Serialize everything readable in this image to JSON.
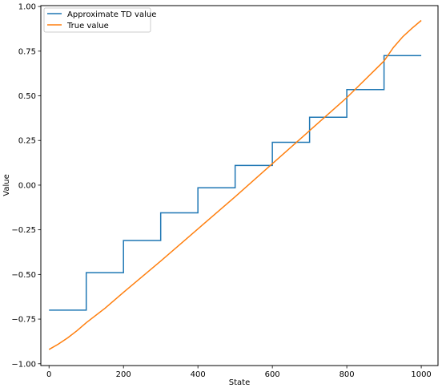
{
  "chart_data": {
    "type": "line",
    "title": "",
    "xlabel": "State",
    "ylabel": "Value",
    "xlim": [
      -22,
      1045
    ],
    "ylim": [
      -1.01,
      1.005
    ],
    "xticks": [
      0,
      200,
      400,
      600,
      800,
      1000
    ],
    "xtick_labels": [
      "0",
      "200",
      "400",
      "600",
      "800",
      "1000"
    ],
    "yticks": [
      1.0,
      0.75,
      0.5,
      0.25,
      0.0,
      -0.25,
      -0.5,
      -0.75,
      -1.0
    ],
    "ytick_labels": [
      "1.00",
      "0.75",
      "0.50",
      "0.25",
      "0.00",
      "−0.25",
      "−0.50",
      "−0.75",
      "−1.00"
    ],
    "grid": false,
    "legend_position": "top-left",
    "series": [
      {
        "name": "Approximate TD value",
        "color": "#1f77b4",
        "step": true,
        "segments": [
          {
            "x_start": 0,
            "x_end": 100,
            "y": -0.7
          },
          {
            "x_start": 100,
            "x_end": 200,
            "y": -0.49
          },
          {
            "x_start": 200,
            "x_end": 300,
            "y": -0.31
          },
          {
            "x_start": 300,
            "x_end": 400,
            "y": -0.155
          },
          {
            "x_start": 400,
            "x_end": 500,
            "y": -0.015
          },
          {
            "x_start": 500,
            "x_end": 600,
            "y": 0.11
          },
          {
            "x_start": 600,
            "x_end": 700,
            "y": 0.24
          },
          {
            "x_start": 700,
            "x_end": 800,
            "y": 0.38
          },
          {
            "x_start": 800,
            "x_end": 900,
            "y": 0.535
          },
          {
            "x_start": 900,
            "x_end": 1000,
            "y": 0.725
          }
        ]
      },
      {
        "name": "True value",
        "color": "#ff7f0e",
        "step": false,
        "x": [
          0,
          25,
          50,
          75,
          100,
          150,
          200,
          300,
          400,
          500,
          600,
          700,
          800,
          900,
          925,
          950,
          975,
          1000
        ],
        "y": [
          -0.92,
          -0.89,
          -0.855,
          -0.815,
          -0.77,
          -0.69,
          -0.6,
          -0.425,
          -0.245,
          -0.065,
          0.12,
          0.305,
          0.49,
          0.695,
          0.77,
          0.83,
          0.878,
          0.922
        ]
      }
    ]
  }
}
